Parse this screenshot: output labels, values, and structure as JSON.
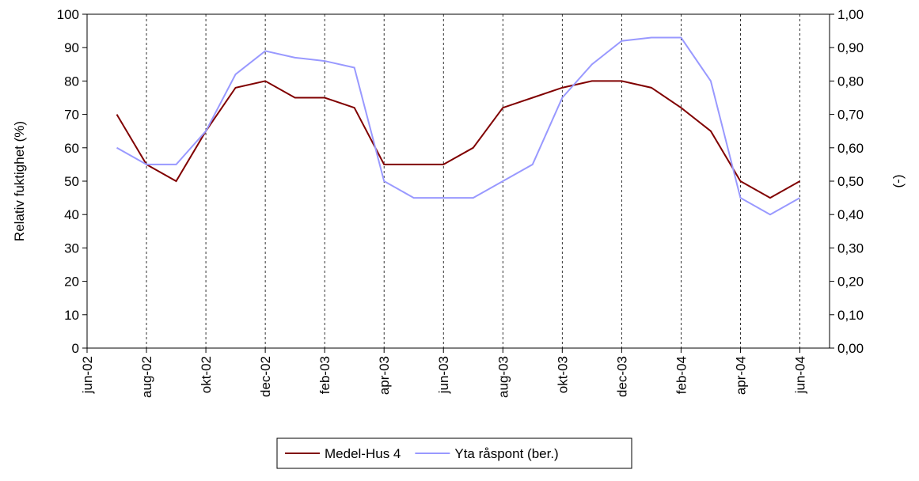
{
  "chart_data": {
    "type": "line",
    "x": [
      "2002-07",
      "2002-08",
      "2002-09",
      "2002-10",
      "2002-11",
      "2002-12",
      "2003-01",
      "2003-02",
      "2003-03",
      "2003-04",
      "2003-05",
      "2003-06",
      "2003-07",
      "2003-08",
      "2003-09",
      "2003-10",
      "2003-11",
      "2003-12",
      "2004-01",
      "2004-02",
      "2004-03",
      "2004-04",
      "2004-05",
      "2004-06"
    ],
    "xlim": [
      "2002-06",
      "2004-07"
    ],
    "xticks": [
      {
        "value": "2002-06",
        "label": "jun-02"
      },
      {
        "value": "2002-08",
        "label": "aug-02"
      },
      {
        "value": "2002-10",
        "label": "okt-02"
      },
      {
        "value": "2002-12",
        "label": "dec-02"
      },
      {
        "value": "2003-02",
        "label": "feb-03"
      },
      {
        "value": "2003-04",
        "label": "apr-03"
      },
      {
        "value": "2003-06",
        "label": "jun-03"
      },
      {
        "value": "2003-08",
        "label": "aug-03"
      },
      {
        "value": "2003-10",
        "label": "okt-03"
      },
      {
        "value": "2003-12",
        "label": "dec-03"
      },
      {
        "value": "2004-02",
        "label": "feb-04"
      },
      {
        "value": "2004-04",
        "label": "apr-04"
      },
      {
        "value": "2004-06",
        "label": "jun-04"
      }
    ],
    "y_label": "Relativ fuktighet (%)",
    "y2_label": "(-)",
    "ylim": [
      0,
      100
    ],
    "yticks": [
      0,
      10,
      20,
      30,
      40,
      50,
      60,
      70,
      80,
      90,
      100
    ],
    "y2lim": [
      0,
      1
    ],
    "y2ticks": [
      {
        "value": 0,
        "label": "0,00"
      },
      {
        "value": 0.1,
        "label": "0,10"
      },
      {
        "value": 0.2,
        "label": "0,20"
      },
      {
        "value": 0.3,
        "label": "0,30"
      },
      {
        "value": 0.4,
        "label": "0,40"
      },
      {
        "value": 0.5,
        "label": "0,50"
      },
      {
        "value": 0.6,
        "label": "0,60"
      },
      {
        "value": 0.7,
        "label": "0,70"
      },
      {
        "value": 0.8,
        "label": "0,80"
      },
      {
        "value": 0.9,
        "label": "0,90"
      },
      {
        "value": 1,
        "label": "1,00"
      }
    ],
    "grid": true,
    "legend": "bottom",
    "series": [
      {
        "name": "Medel-Hus 4",
        "color": "#800000",
        "values": [
          70,
          55,
          50,
          65,
          78,
          80,
          75,
          75,
          72,
          55,
          55,
          55,
          60,
          72,
          75,
          78,
          80,
          80,
          78,
          72,
          65,
          50,
          45,
          50
        ]
      },
      {
        "name": "Yta råspont (ber.)",
        "color": "#9999ff",
        "axis": "y2",
        "values": [
          0.6,
          0.55,
          0.55,
          0.65,
          0.82,
          0.89,
          0.87,
          0.86,
          0.84,
          0.5,
          0.45,
          0.45,
          0.45,
          0.5,
          0.55,
          0.75,
          0.85,
          0.92,
          0.93,
          0.93,
          0.8,
          0.45,
          0.4,
          0.45
        ]
      }
    ]
  }
}
